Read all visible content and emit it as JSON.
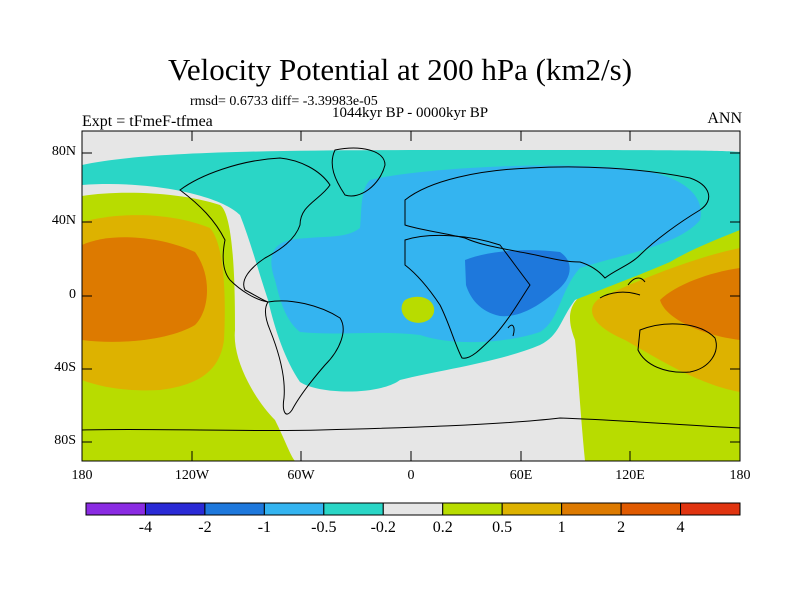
{
  "title": "Velocity Potential at 200 hPa (km2/s)",
  "stats": "rmsd= 0.6733 diff= -3.39983e-05",
  "subtitle": "1044kyr BP - 0000kyr BP",
  "left_label": "Expt = tFmeF-tfmea",
  "right_label": "ANN",
  "lat_labels": [
    "80N",
    "40N",
    "0",
    "40S",
    "80S"
  ],
  "lon_labels": [
    "180",
    "120W",
    "60W",
    "0",
    "60E",
    "120E",
    "180"
  ],
  "colorbar": {
    "labels": [
      "-4",
      "-2",
      "-1",
      "-0.5",
      "-0.2",
      "0.2",
      "0.5",
      "1",
      "2",
      "4"
    ],
    "colors": [
      "#8a2be2",
      "#2a2ad6",
      "#1e78dc",
      "#34b4f0",
      "#2ad6c6",
      "#e6e6e6",
      "#b8dc00",
      "#ddb200",
      "#dd7a00",
      "#e05a00",
      "#e03410"
    ]
  },
  "map_colors": {
    "land_lines": "#000000",
    "neutral": "#e6e6e6",
    "teal": "#2ad6c6",
    "light_blue": "#34b4f0",
    "blue": "#1e78dc",
    "green": "#b8dc00",
    "gold": "#ddb200",
    "orange": "#dd7a00"
  }
}
